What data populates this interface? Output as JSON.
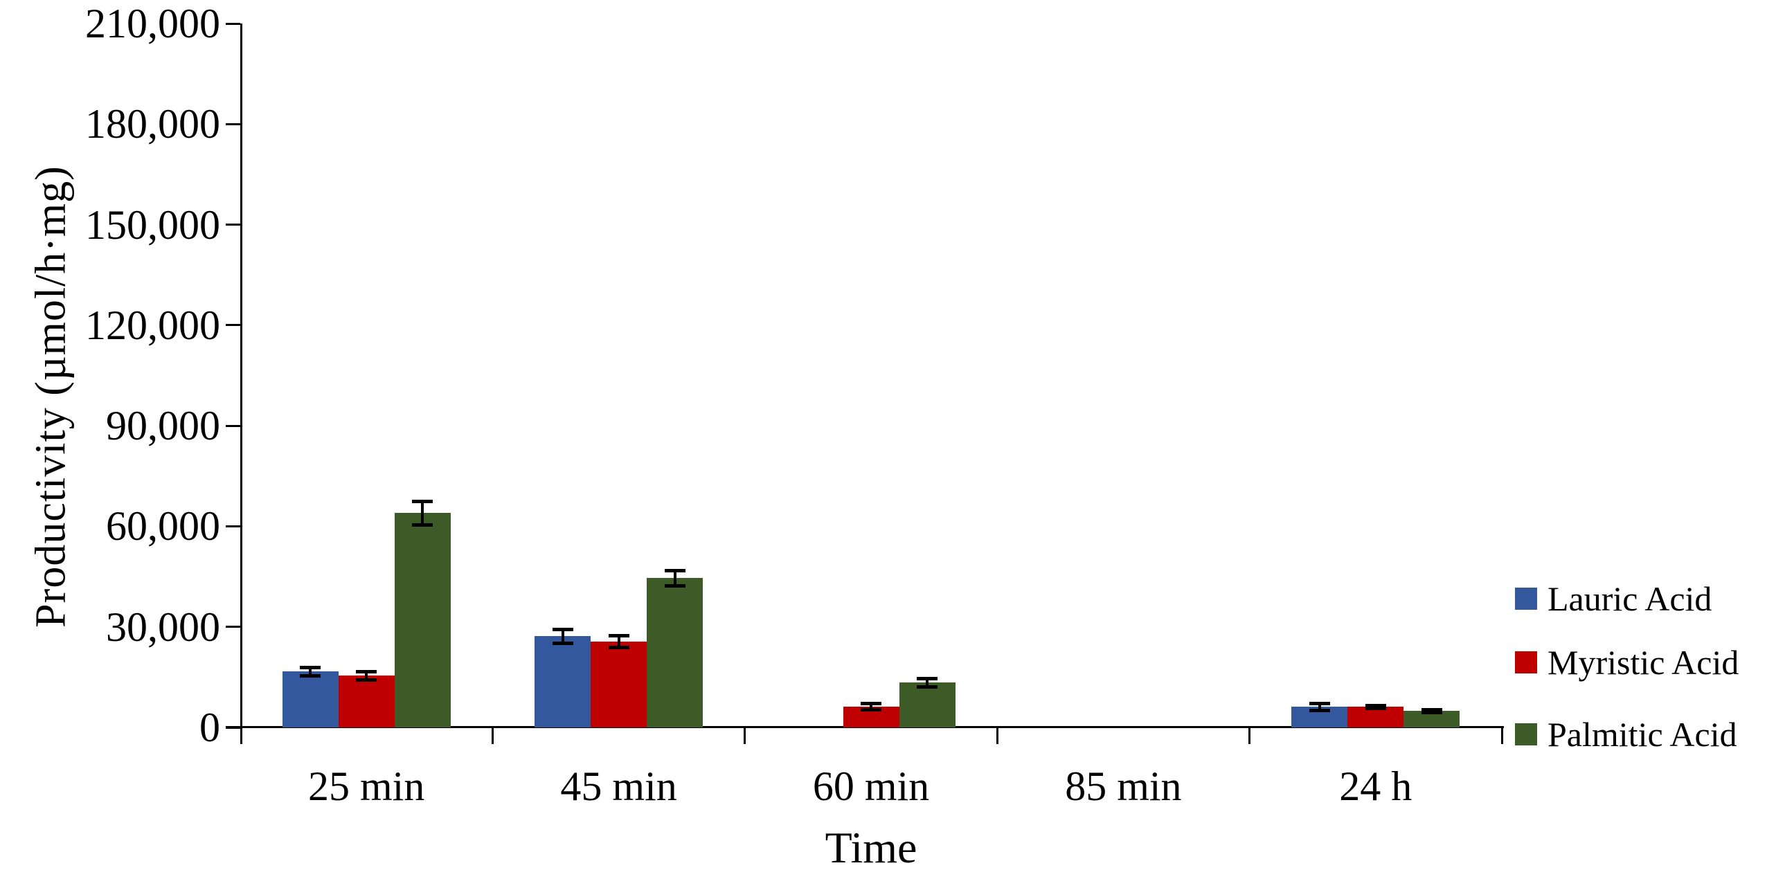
{
  "chart_data": {
    "type": "bar",
    "title": "",
    "xlabel": "Time",
    "ylabel": "Productivity (µmol/h·mg)",
    "categories": [
      "25 min",
      "45 min",
      "60 min",
      "85 min",
      "24 h"
    ],
    "series": [
      {
        "name": "Lauric Acid",
        "color": "#33589E",
        "values": [
          16700,
          27300,
          0,
          0,
          6200
        ],
        "errors": [
          1200,
          2000,
          0,
          0,
          1000
        ]
      },
      {
        "name": "Myristic Acid",
        "color": "#BF0000",
        "values": [
          15500,
          25700,
          6300,
          0,
          6200
        ],
        "errors": [
          1300,
          1800,
          900,
          0,
          400
        ]
      },
      {
        "name": "Palmitic Acid",
        "color": "#3C5B26",
        "values": [
          64000,
          44600,
          13400,
          0,
          5000
        ],
        "errors": [
          3500,
          2300,
          1300,
          0,
          400
        ]
      }
    ],
    "y_axis": {
      "min": 0,
      "max": 210000,
      "step": 30000,
      "tick_labels": [
        "0",
        "30,000",
        "60,000",
        "90,000",
        "120,000",
        "150,000",
        "180,000",
        "210,000"
      ]
    },
    "legend_position": "right",
    "grid": false,
    "axis_color": "#000000",
    "error_bar_color": "#000000",
    "background_color": "#ffffff"
  }
}
